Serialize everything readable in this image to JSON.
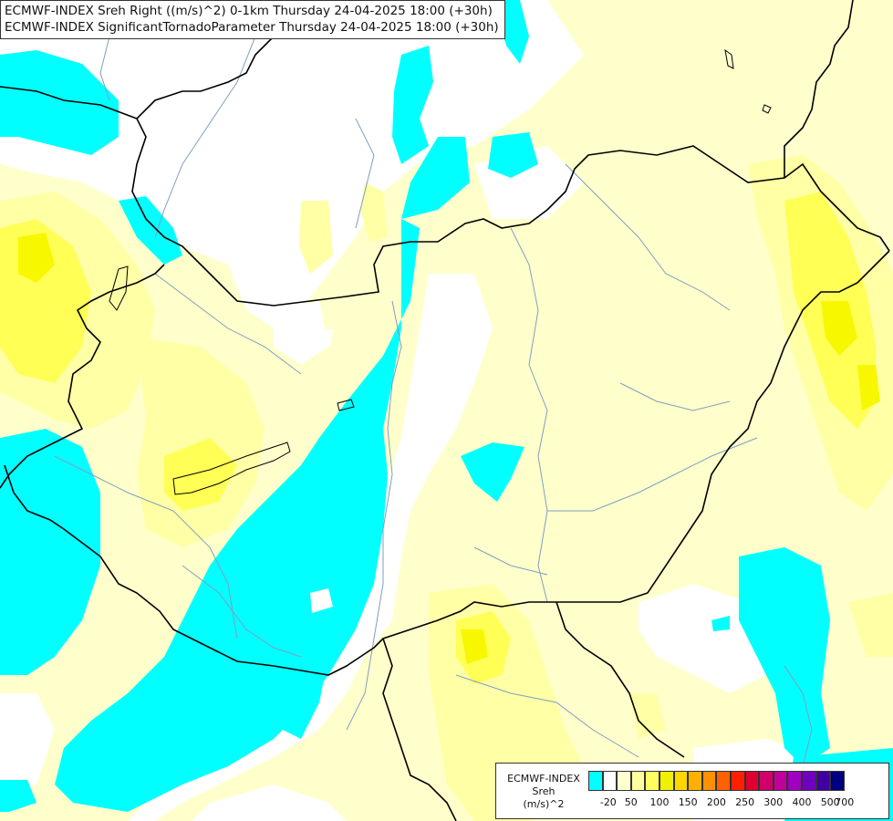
{
  "header": {
    "line1": "ECMWF-INDEX Sreh Right ((m/s)^2) 0-1km Thursday 24-04-2025 18:00 (+30h)",
    "line2": "ECMWF-INDEX SignificantTornadoParameter Thursday 24-04-2025 18:00 (+30h)"
  },
  "legend": {
    "title": "ECMWF-INDEX",
    "variable": "Sreh",
    "unit": "(m/s)^2",
    "tick_labels": [
      "-20",
      "50",
      "100",
      "150",
      "200",
      "250",
      "300",
      "400",
      "500",
      "700"
    ],
    "colors": [
      "#00ffff",
      "#ffffff",
      "#ffffd0",
      "#ffffa0",
      "#ffff60",
      "#f0f000",
      "#ffd700",
      "#ffb000",
      "#ff9000",
      "#ff6000",
      "#ff2000",
      "#e00030",
      "#d0006a",
      "#c0009a",
      "#a000c0",
      "#7000c0",
      "#4000a0",
      "#000080"
    ]
  },
  "map_colors": {
    "cyan": "#00ffff",
    "pale": "#ffffcc",
    "light_yellow": "#ffffa6",
    "yellow": "#ffff55",
    "bright_yellow": "#f7f700",
    "border": "#000000",
    "river": "#7f9fbf"
  }
}
